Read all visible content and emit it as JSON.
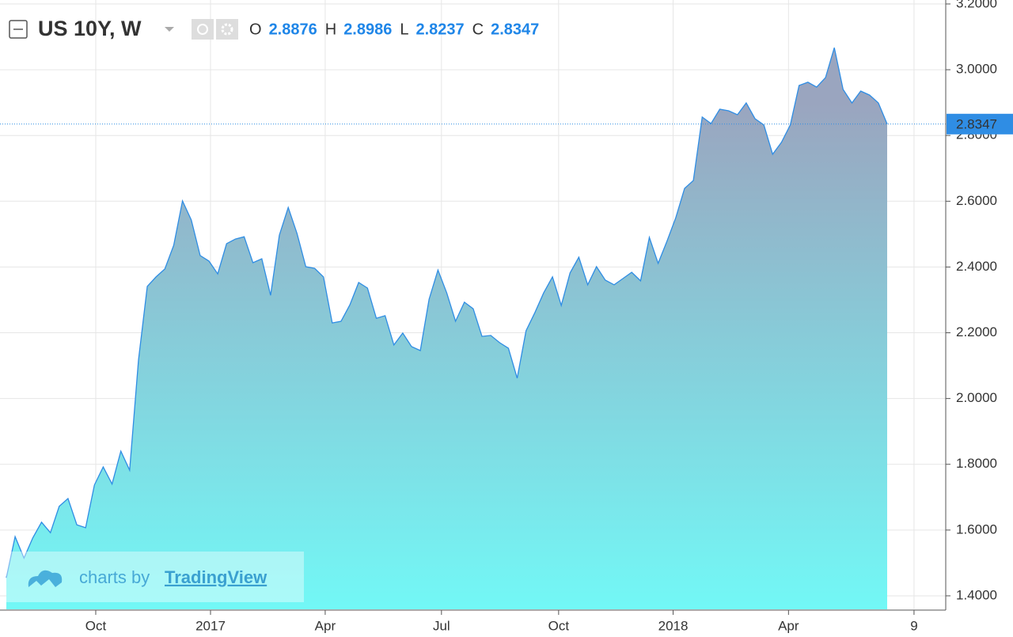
{
  "chart_data": {
    "type": "area",
    "title": "US 10Y, W",
    "ohlc": [
      {
        "label": "O",
        "value": 2.8876
      },
      {
        "label": "H",
        "value": 2.8986
      },
      {
        "label": "L",
        "value": 2.8237
      },
      {
        "label": "C",
        "value": 2.8347
      }
    ],
    "values": [
      1.455,
      1.58,
      1.515,
      1.576,
      1.624,
      1.592,
      1.672,
      1.696,
      1.616,
      1.607,
      1.737,
      1.792,
      1.74,
      1.84,
      1.782,
      2.117,
      2.341,
      2.37,
      2.394,
      2.466,
      2.601,
      2.543,
      2.435,
      2.418,
      2.379,
      2.471,
      2.485,
      2.492,
      2.413,
      2.425,
      2.314,
      2.497,
      2.581,
      2.502,
      2.401,
      2.396,
      2.37,
      2.23,
      2.235,
      2.285,
      2.353,
      2.336,
      2.244,
      2.252,
      2.163,
      2.199,
      2.158,
      2.146,
      2.302,
      2.391,
      2.321,
      2.235,
      2.293,
      2.273,
      2.189,
      2.192,
      2.17,
      2.153,
      2.062,
      2.206,
      2.261,
      2.321,
      2.37,
      2.283,
      2.382,
      2.43,
      2.346,
      2.401,
      2.36,
      2.346,
      2.365,
      2.384,
      2.358,
      2.49,
      2.411,
      2.478,
      2.55,
      2.639,
      2.663,
      2.856,
      2.836,
      2.88,
      2.875,
      2.863,
      2.899,
      2.851,
      2.832,
      2.743,
      2.779,
      2.832,
      2.952,
      2.962,
      2.947,
      2.976,
      3.067,
      2.94,
      2.899,
      2.935,
      2.923,
      2.899,
      2.8347
    ],
    "color": "#2f8de4",
    "fill_top": "#9aa5bf",
    "fill_bottom": "#72f8f6",
    "xlim": [
      -0.72,
      106.65
    ],
    "xticks": [
      {
        "value": 10.15,
        "label": "Oct"
      },
      {
        "value": 23.18,
        "label": "2017"
      },
      {
        "value": 36.2,
        "label": "Apr"
      },
      {
        "value": 49.4,
        "label": "Jul"
      },
      {
        "value": 62.7,
        "label": "Oct"
      },
      {
        "value": 75.7,
        "label": "2018"
      },
      {
        "value": 88.8,
        "label": "Apr"
      },
      {
        "value": 103.05,
        "label": "9"
      }
    ],
    "ylim": [
      1.359,
      3.212
    ],
    "yticks": [
      {
        "value": 1.4,
        "label": "1.4000"
      },
      {
        "value": 1.6,
        "label": "1.6000"
      },
      {
        "value": 1.8,
        "label": "1.8000"
      },
      {
        "value": 2.0,
        "label": "2.0000"
      },
      {
        "value": 2.2,
        "label": "2.2000"
      },
      {
        "value": 2.4,
        "label": "2.4000"
      },
      {
        "value": 2.6,
        "label": "2.6000"
      },
      {
        "value": 2.8,
        "label": "2.8000"
      },
      {
        "value": 3.0,
        "label": "3.0000"
      },
      {
        "value": 3.2,
        "label": "3.2000"
      }
    ],
    "grid": true,
    "watermark": "charts by",
    "watermark_link": "TradingView"
  }
}
